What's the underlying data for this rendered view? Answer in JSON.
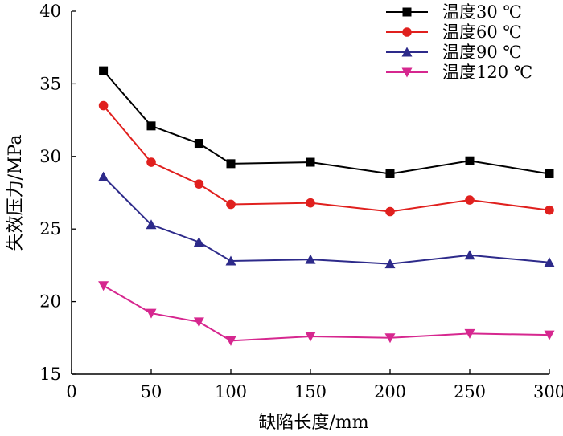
{
  "chart_data": {
    "type": "line",
    "title": "",
    "xlabel": "缺陷长度/mm",
    "ylabel": "失效压力/MPa",
    "xlim": [
      0,
      300
    ],
    "ylim": [
      15,
      40
    ],
    "xticks": [
      0,
      50,
      100,
      150,
      200,
      250,
      300
    ],
    "yticks": [
      15,
      20,
      25,
      30,
      35,
      40
    ],
    "grid": false,
    "legend_position": "top-right",
    "x": [
      20,
      50,
      80,
      100,
      150,
      200,
      250,
      300
    ],
    "series": [
      {
        "name": "温度30 ℃",
        "color": "#000000",
        "marker": "square",
        "values": [
          35.9,
          32.1,
          30.9,
          29.5,
          29.6,
          28.8,
          29.7,
          28.8
        ]
      },
      {
        "name": "温度60 ℃",
        "color": "#e0201e",
        "marker": "circle",
        "values": [
          33.5,
          29.6,
          28.1,
          26.7,
          26.8,
          26.2,
          27.0,
          26.3
        ]
      },
      {
        "name": "温度90 ℃",
        "color": "#2d2a8a",
        "marker": "triangle-up",
        "values": [
          28.6,
          25.3,
          24.1,
          22.8,
          22.9,
          22.6,
          23.2,
          22.7
        ]
      },
      {
        "name": "温度120 ℃",
        "color": "#d6278f",
        "marker": "triangle-down",
        "values": [
          21.1,
          19.2,
          18.6,
          17.3,
          17.6,
          17.5,
          17.8,
          17.7
        ]
      }
    ]
  }
}
